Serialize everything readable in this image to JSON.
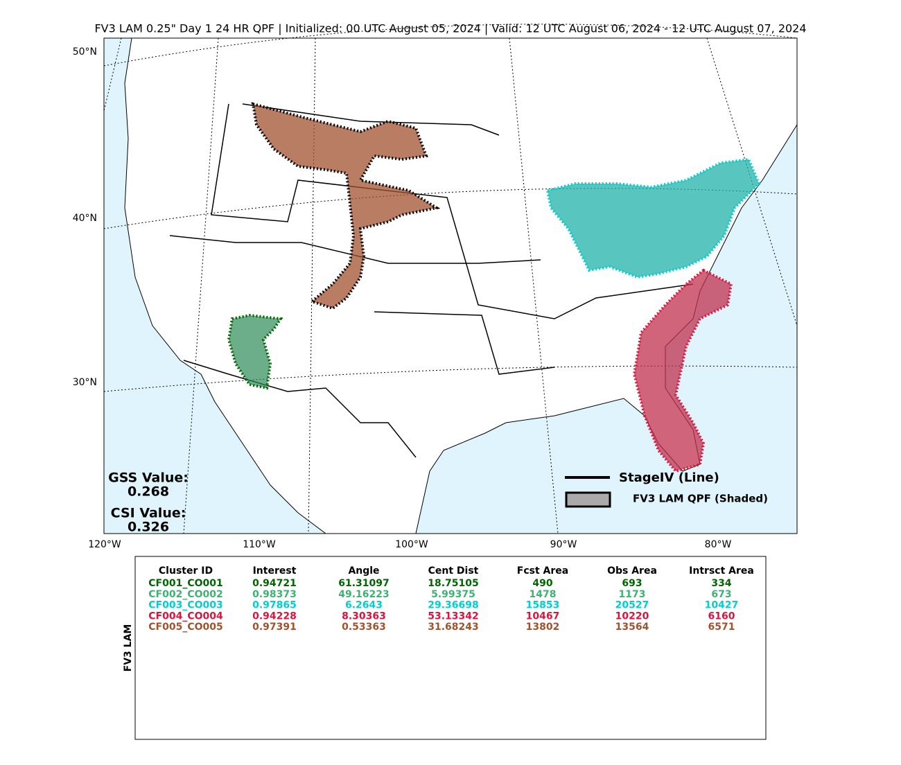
{
  "title": "FV3 LAM 0.25\" Day 1 24 HR QPF | Initialized: 00 UTC August 05, 2024 | Valid: 12 UTC August 06, 2024 - 12 UTC August 07, 2024",
  "map": {
    "lat_labels": [
      "50°N",
      "40°N",
      "30°N"
    ],
    "lon_labels": [
      "120°W",
      "110°W",
      "100°W",
      "90°W",
      "80°W"
    ],
    "gss_label": "GSS Value:",
    "gss_value": "0.268",
    "csi_label": "CSI Value:",
    "csi_value": "0.326",
    "legend": [
      "StageIV (Line)",
      "FV3 LAM QPF (Shaded)"
    ]
  },
  "table": {
    "side_label": "FV3 LAM",
    "columns": [
      "Cluster ID",
      "Interest",
      "Angle",
      "Cent Dist",
      "Fcst Area",
      "Obs Area",
      "Intrsct Area"
    ],
    "row_colors": [
      "#006400",
      "#3cb371",
      "#00ced1",
      "#dc143c",
      "#a0522d"
    ],
    "rows": [
      [
        "CF001_CO001",
        "0.94721",
        "61.31097",
        "18.75105",
        "490",
        "693",
        "334"
      ],
      [
        "CF002_CO002",
        "0.98373",
        "49.16223",
        "5.99375",
        "1478",
        "1173",
        "673"
      ],
      [
        "CF003_CO003",
        "0.97865",
        "6.2643",
        "29.36698",
        "15853",
        "20527",
        "10427"
      ],
      [
        "CF004_CO004",
        "0.94228",
        "8.30363",
        "53.13342",
        "10467",
        "10220",
        "6160"
      ],
      [
        "CF005_CO005",
        "0.97391",
        "0.53363",
        "31.68243",
        "13802",
        "13564",
        "6571"
      ]
    ]
  }
}
